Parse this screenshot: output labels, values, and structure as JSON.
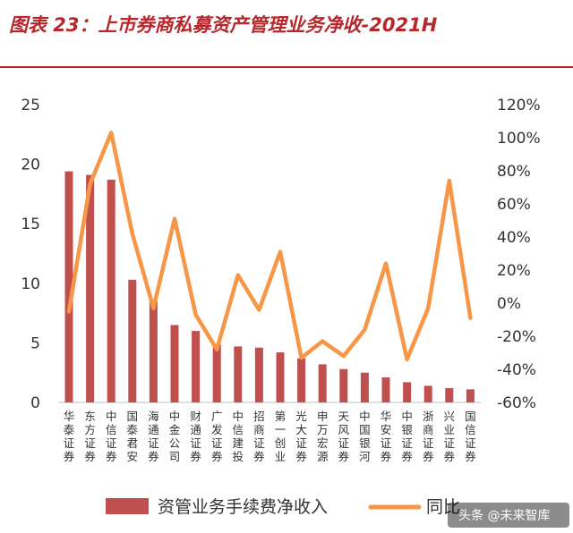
{
  "header": {
    "title": "图表 23：上市券商私募资产管理业务净收-2021H"
  },
  "watermark": {
    "text": "头条 @未来智库"
  },
  "colors": {
    "title": "#b7272c",
    "bar": "#c0504d",
    "line": "#f79646"
  },
  "chart_data": {
    "type": "bar",
    "title": "",
    "xlabel": "",
    "ylabel": "",
    "categories": [
      "华泰证券",
      "东方证券",
      "中信证券",
      "国泰君安",
      "海通证券",
      "中金公司",
      "财通证券",
      "广发证券",
      "中信建投",
      "招商证券",
      "第一创业",
      "光大证券",
      "申万宏源",
      "天风证券",
      "中国银河",
      "华安证券",
      "中银证券",
      "浙商证券",
      "兴业证券",
      "国信证券"
    ],
    "ylim": [
      0,
      25
    ],
    "y_ticks": [
      "0",
      "5",
      "10",
      "15",
      "20",
      "25"
    ],
    "y2lim": [
      -60,
      120
    ],
    "y2_ticks": [
      "-60%",
      "-40%",
      "-20%",
      "0%",
      "20%",
      "40%",
      "60%",
      "80%",
      "100%",
      "120%"
    ],
    "series": [
      {
        "name": "资管业务手续费净收入",
        "type": "bar",
        "axis": "left",
        "values": [
          19.4,
          19.1,
          18.7,
          10.3,
          8.5,
          6.5,
          6.0,
          4.9,
          4.7,
          4.6,
          4.2,
          3.7,
          3.2,
          2.8,
          2.5,
          2.1,
          1.7,
          1.4,
          1.2,
          1.1
        ]
      },
      {
        "name": "同比",
        "type": "line",
        "axis": "right",
        "values": [
          -5,
          72,
          103,
          42,
          -3,
          51,
          -7,
          -28,
          17,
          -4,
          31,
          -33,
          -23,
          -32,
          -16,
          24,
          -34,
          -3,
          74,
          -9
        ]
      }
    ],
    "legend": {
      "placement": "bottom"
    },
    "grid": false
  }
}
